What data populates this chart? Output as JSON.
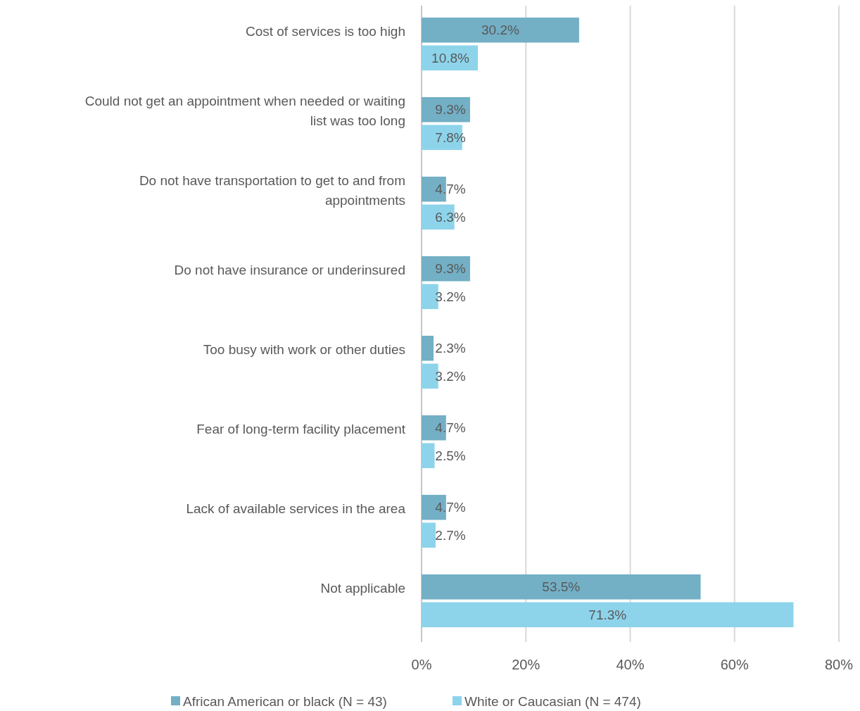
{
  "chart_data": {
    "type": "bar",
    "orientation": "horizontal",
    "categories": [
      "Cost of services is too high",
      "Could not get an appointment when needed or waiting list was too long",
      "Do not have transportation to get to and from appointments",
      "Do not have insurance or underinsured",
      "Too busy with work or other duties",
      "Fear of long-term facility placement",
      "Lack of available services in the area",
      "Not applicable"
    ],
    "series": [
      {
        "name": "African American or black (N = 43)",
        "color": "#73afc5",
        "values": [
          30.2,
          9.3,
          4.7,
          9.3,
          2.3,
          4.7,
          4.7,
          53.5
        ],
        "value_labels": [
          "30.2%",
          "9.3%",
          "4.7%",
          "9.3%",
          "2.3%",
          "4.7%",
          "4.7%",
          "53.5%"
        ]
      },
      {
        "name": "White or Caucasian (N = 474)",
        "color": "#8dd4eb",
        "values": [
          10.8,
          7.8,
          6.3,
          3.2,
          3.2,
          2.5,
          2.7,
          71.3
        ],
        "value_labels": [
          "10.8%",
          "7.8%",
          "6.3%",
          "3.2%",
          "3.2%",
          "2.5%",
          "2.7%",
          "71.3%"
        ]
      }
    ],
    "xlim": [
      0,
      80
    ],
    "xticks": [
      {
        "value": 0,
        "label": "0%"
      },
      {
        "value": 20,
        "label": "20%"
      },
      {
        "value": 40,
        "label": "40%"
      },
      {
        "value": 60,
        "label": "60%"
      },
      {
        "value": 80,
        "label": "80%"
      }
    ],
    "grid": "x",
    "legend": "bottom"
  }
}
